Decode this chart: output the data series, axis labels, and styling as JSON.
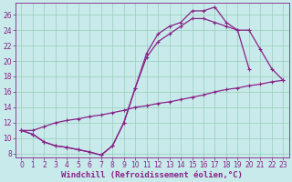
{
  "xlabel": "Windchill (Refroidissement éolien,°C)",
  "bg_color": "#c8eaea",
  "line_color": "#882288",
  "grid_color": "#99ccbb",
  "xlim": [
    -0.5,
    23.5
  ],
  "ylim": [
    7.5,
    27.5
  ],
  "xticks": [
    0,
    1,
    2,
    3,
    4,
    5,
    6,
    7,
    8,
    9,
    10,
    11,
    12,
    13,
    14,
    15,
    16,
    17,
    18,
    19,
    20,
    21,
    22,
    23
  ],
  "yticks": [
    8,
    10,
    12,
    14,
    16,
    18,
    20,
    22,
    24,
    26
  ],
  "line1_x": [
    0,
    1,
    2,
    3,
    4,
    5,
    6,
    7,
    8,
    9,
    10,
    11,
    12,
    13,
    14,
    15,
    16,
    17,
    18,
    19,
    20
  ],
  "line1_y": [
    11.0,
    10.5,
    9.5,
    9.0,
    8.8,
    8.5,
    8.2,
    7.8,
    9.0,
    12.0,
    16.5,
    21.0,
    23.5,
    24.5,
    25.0,
    26.5,
    26.5,
    27.0,
    25.0,
    24.0,
    19.0
  ],
  "line2_x": [
    0,
    1,
    2,
    3,
    4,
    5,
    6,
    7,
    8,
    9,
    10,
    11,
    12,
    13,
    14,
    15,
    16,
    17,
    18,
    19,
    20,
    21,
    22,
    23
  ],
  "line2_y": [
    11.0,
    10.5,
    9.5,
    9.0,
    8.8,
    8.5,
    8.2,
    7.8,
    9.0,
    12.0,
    16.5,
    20.5,
    22.5,
    23.5,
    24.5,
    25.5,
    25.5,
    25.0,
    24.5,
    24.0,
    24.0,
    21.5,
    19.0,
    17.5
  ],
  "line3_x": [
    0,
    1,
    2,
    3,
    4,
    5,
    6,
    7,
    8,
    9,
    10,
    11,
    12,
    13,
    14,
    15,
    16,
    17,
    18,
    19,
    20,
    21,
    22,
    23
  ],
  "line3_y": [
    11.0,
    11.0,
    11.5,
    12.0,
    12.3,
    12.5,
    12.8,
    13.0,
    13.3,
    13.6,
    14.0,
    14.2,
    14.5,
    14.7,
    15.0,
    15.3,
    15.6,
    16.0,
    16.3,
    16.5,
    16.8,
    17.0,
    17.3,
    17.5
  ],
  "xlabel_fontsize": 6.5,
  "tick_fontsize": 5.5,
  "marker_size": 2.5,
  "line_width": 0.9
}
